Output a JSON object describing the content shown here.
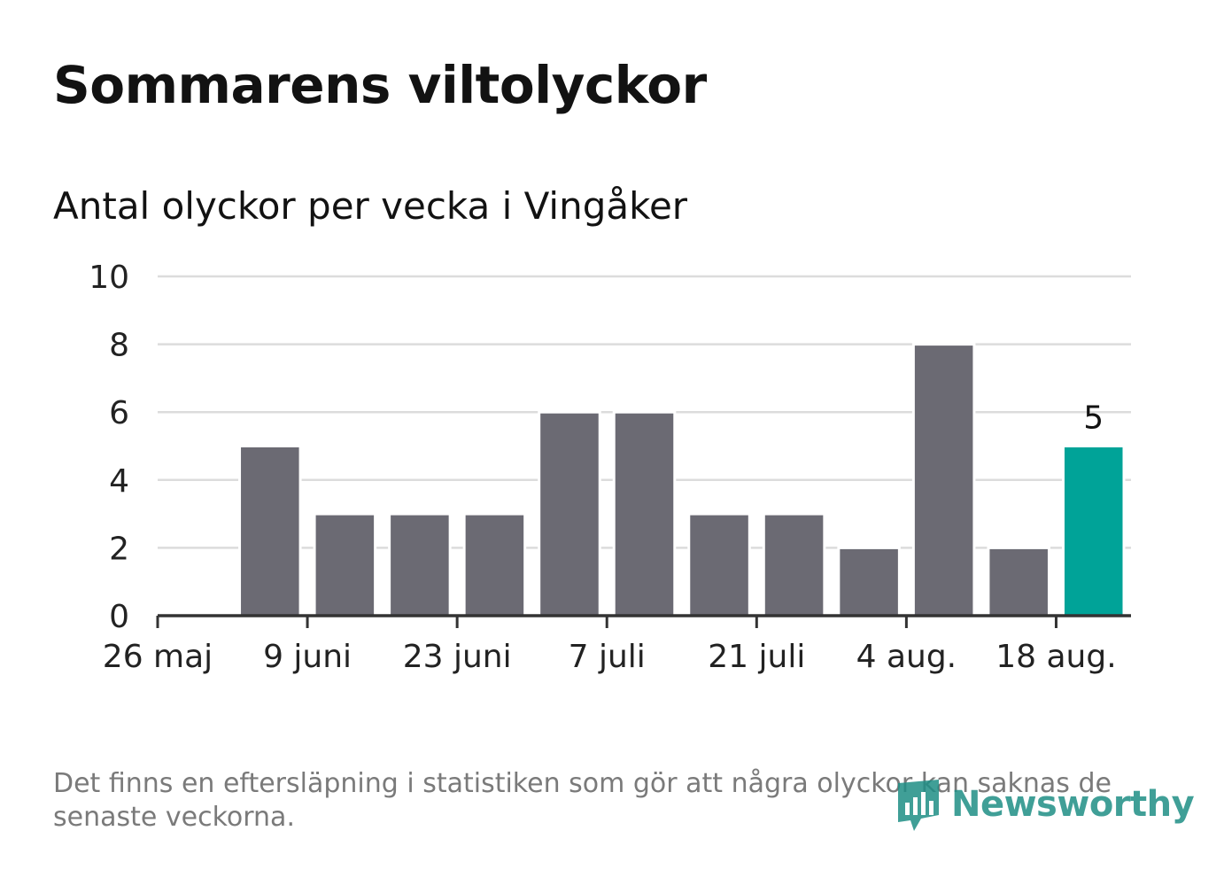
{
  "title": "Sommarens viltolyckor",
  "subtitle": "Antal olyckor per vecka i Vingåker",
  "footnote": "Det finns en eftersläpning i statistiken som gör att några olyckor kan saknas de senaste veckorna.",
  "brand": "Newsworthy",
  "colors": {
    "bar": "#6b6a73",
    "highlight": "#00a398",
    "grid": "#dcdcdc",
    "axis": "#333333",
    "brand": "#1f8f86"
  },
  "chart_data": {
    "type": "bar",
    "x": [
      "2025-05-26",
      "2025-06-02",
      "2025-06-09",
      "2025-06-16",
      "2025-06-23",
      "2025-06-30",
      "2025-07-07",
      "2025-07-14",
      "2025-07-21",
      "2025-07-28",
      "2025-08-04",
      "2025-08-11",
      "2025-08-18"
    ],
    "values": [
      null,
      5,
      3,
      3,
      3,
      6,
      6,
      3,
      3,
      2,
      8,
      2,
      5
    ],
    "ylim": [
      0,
      10
    ],
    "yticks": [
      0,
      2,
      4,
      6,
      8,
      10
    ],
    "xticks": [
      {
        "x": "2025-05-26",
        "label": "26 maj"
      },
      {
        "x": "2025-06-09",
        "label": "9 juni"
      },
      {
        "x": "2025-06-23",
        "label": "23 juni"
      },
      {
        "x": "2025-07-07",
        "label": "7 juli"
      },
      {
        "x": "2025-07-21",
        "label": "21 juli"
      },
      {
        "x": "2025-08-04",
        "label": "4 aug."
      },
      {
        "x": "2025-08-18",
        "label": "18 aug."
      }
    ],
    "highlight_last": true,
    "data_label": "5",
    "grid": true
  }
}
